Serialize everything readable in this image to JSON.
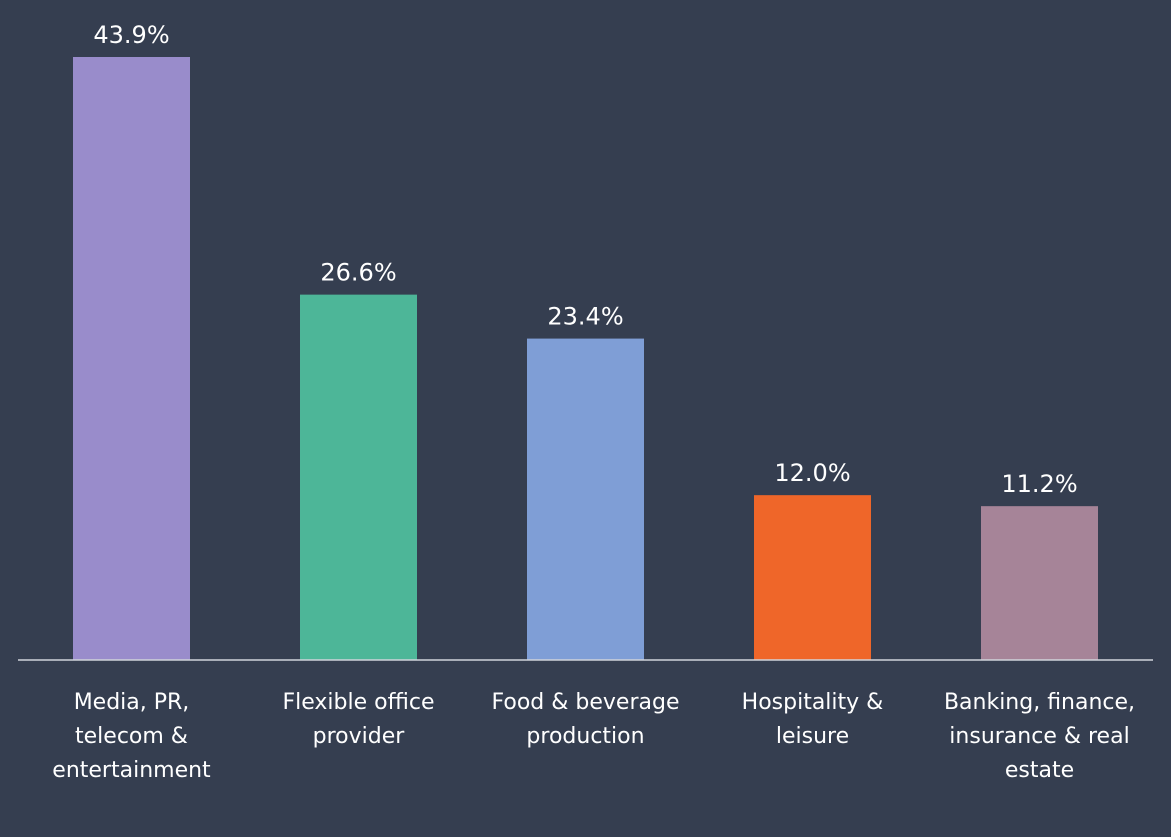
{
  "chart_data": {
    "type": "bar",
    "categories": [
      "Media, PR, telecom & entertainment",
      "Flexible office provider",
      "Food & beverage production",
      "Hospitality & leisure",
      "Banking, finance, insurance & real estate"
    ],
    "values": [
      43.9,
      26.6,
      23.4,
      12.0,
      11.2
    ],
    "value_labels": [
      "43.9%",
      "26.6%",
      "23.4%",
      "12.0%",
      "11.2%"
    ],
    "colors": [
      "#998ccb",
      "#4db698",
      "#7f9ed6",
      "#ef6629",
      "#a68498"
    ]
  }
}
